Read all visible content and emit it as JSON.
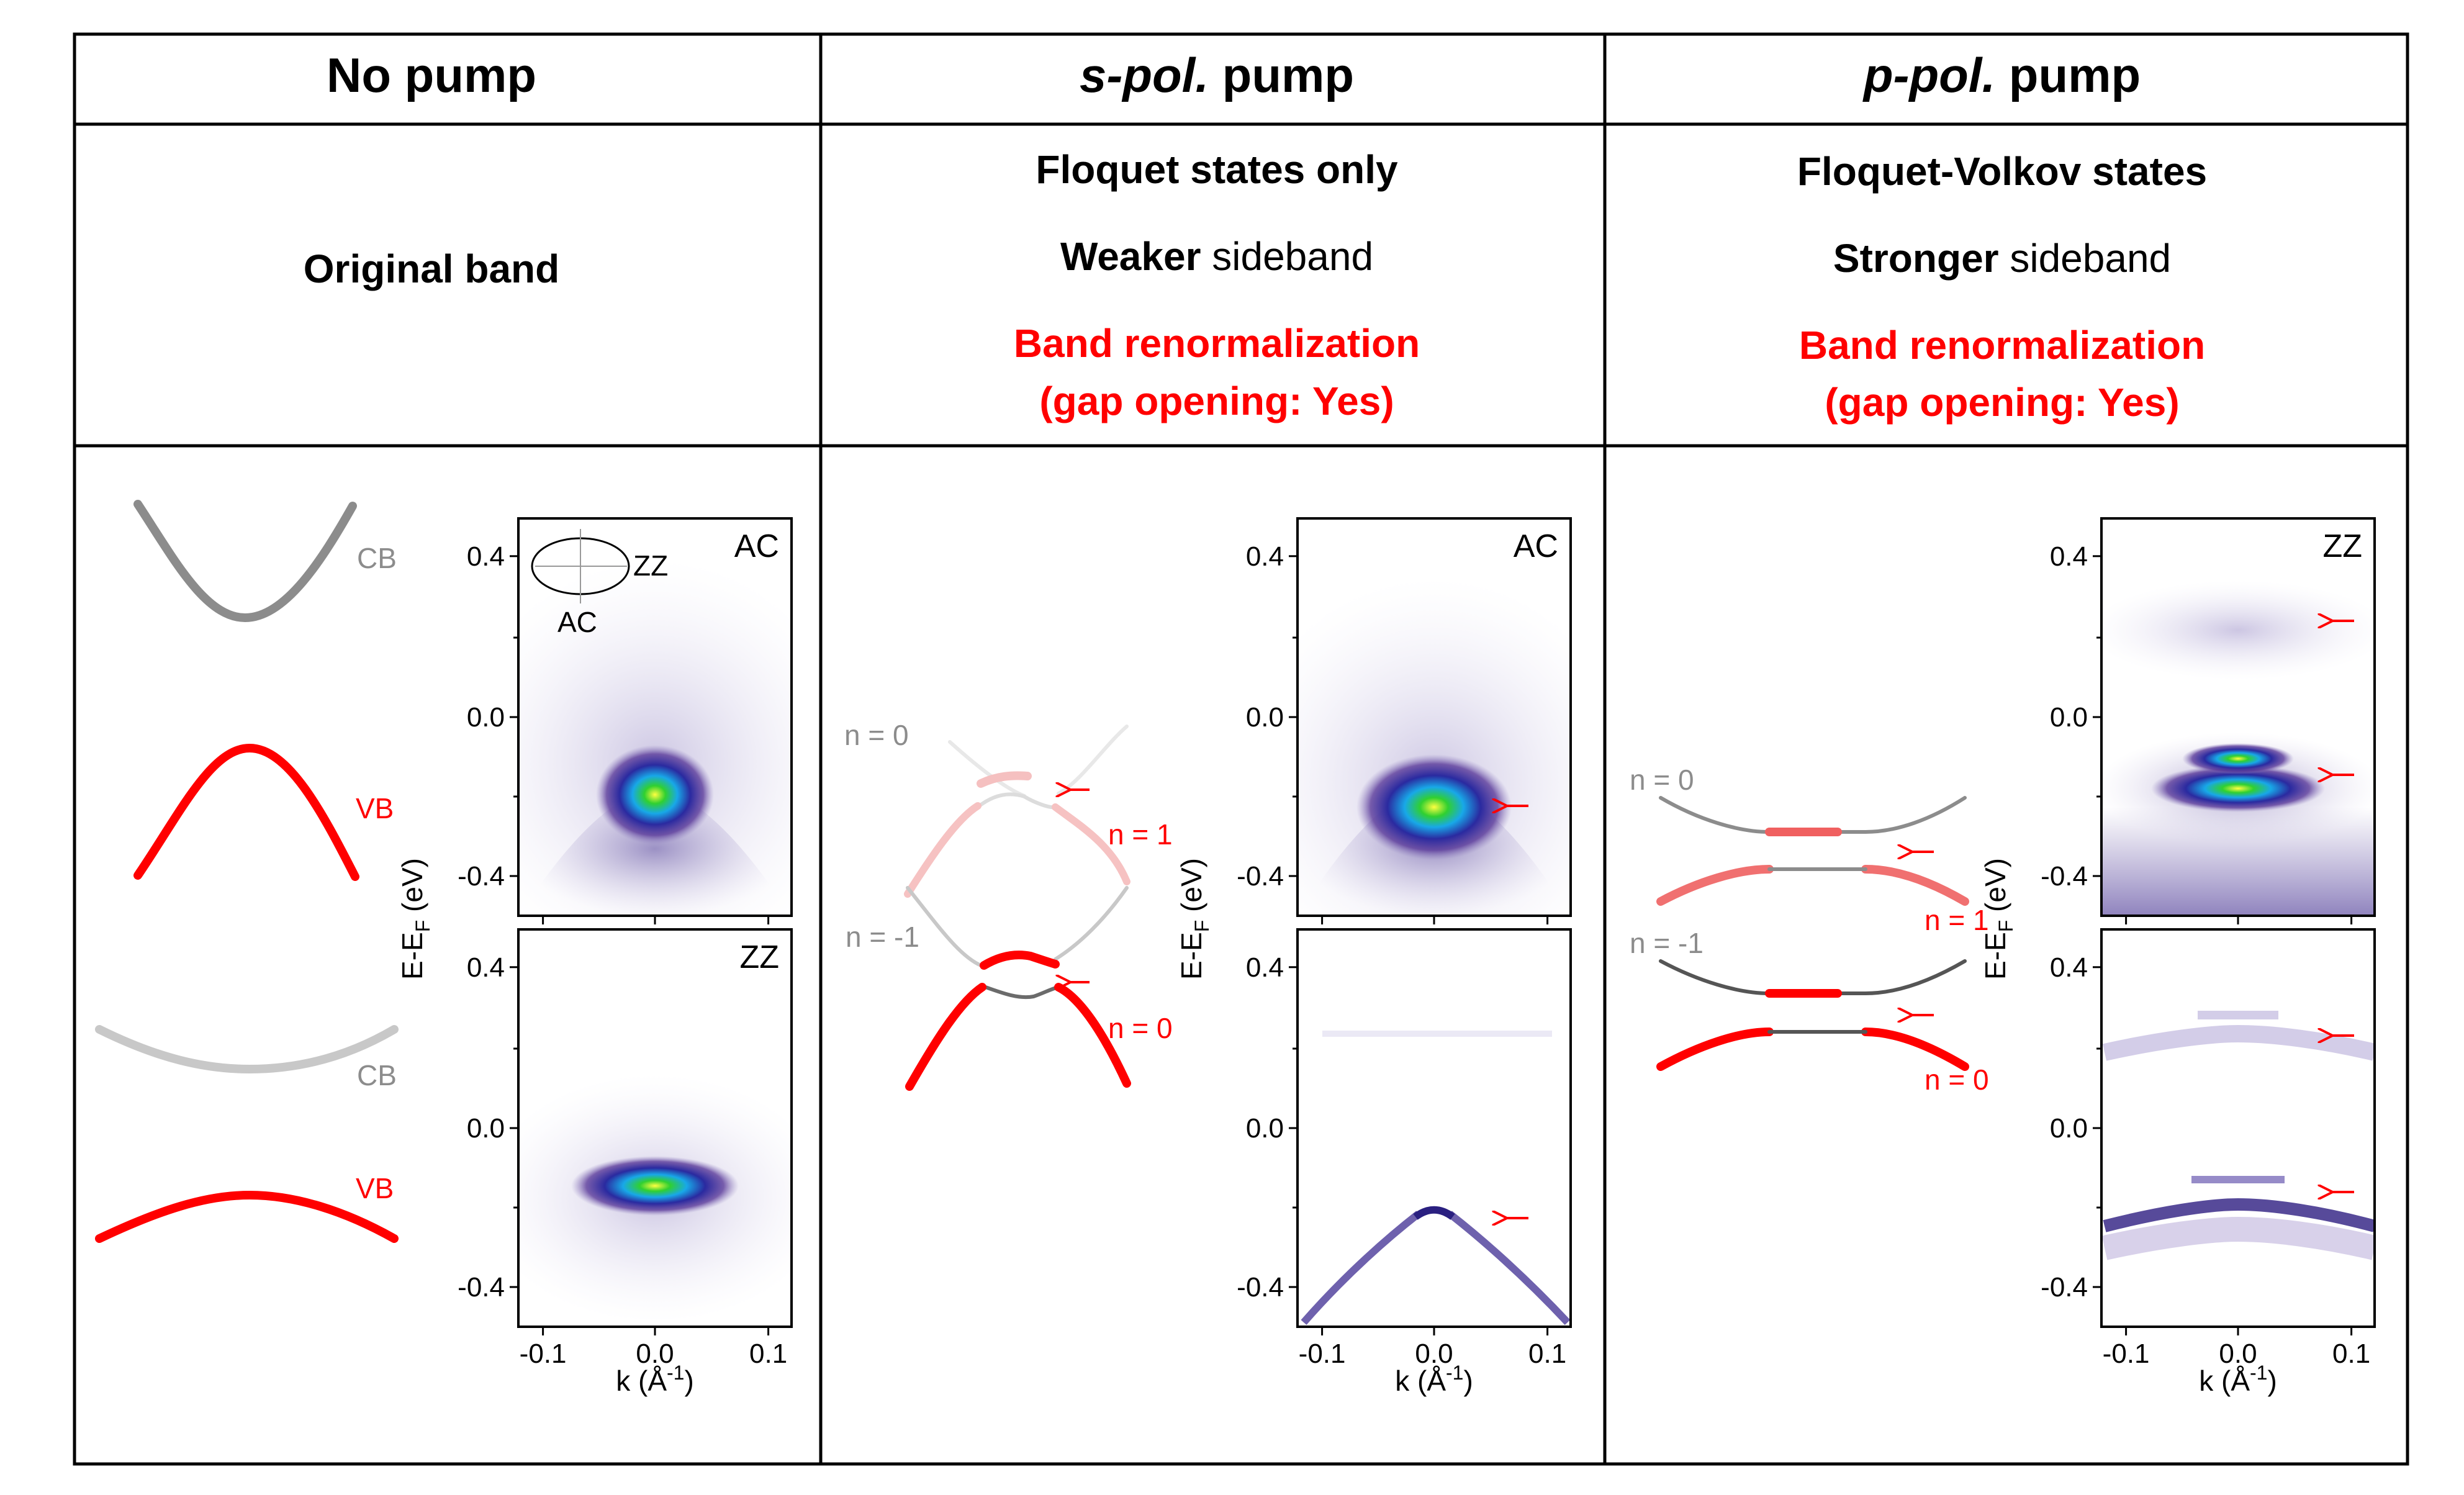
{
  "colors": {
    "red": "#ff0000",
    "gray": "#8c8c8c",
    "lightgray": "#c8c8c8",
    "pink": "#f09090",
    "dark": "#333333"
  },
  "columns": [
    {
      "title_pre": "",
      "title_italic": "",
      "title_post": "No pump",
      "lines": [
        {
          "parts": [
            {
              "text": "Original band",
              "style": "bold"
            }
          ]
        }
      ]
    },
    {
      "title_pre": "",
      "title_italic": "s-pol.",
      "title_post": " pump",
      "lines": [
        {
          "parts": [
            {
              "text": "Floquet states only",
              "style": "bold"
            }
          ]
        },
        {
          "parts": [
            {
              "text": "Weaker",
              "style": "bold"
            },
            {
              "text": " sideband",
              "style": "normal"
            }
          ]
        },
        {
          "parts": [
            {
              "text": "Band renormalization",
              "style": "red"
            }
          ]
        },
        {
          "parts": [
            {
              "text": "(gap opening: Yes)",
              "style": "red"
            }
          ]
        }
      ]
    },
    {
      "title_pre": "",
      "title_italic": "p-pol.",
      "title_post": " pump",
      "lines": [
        {
          "parts": [
            {
              "text": "Floquet-Volkov states",
              "style": "bold"
            }
          ]
        },
        {
          "parts": [
            {
              "text": "Stronger",
              "style": "bold"
            },
            {
              "text": " sideband",
              "style": "normal"
            }
          ]
        },
        {
          "parts": [
            {
              "text": "Band renormalization",
              "style": "red"
            }
          ]
        },
        {
          "parts": [
            {
              "text": "(gap opening: Yes)",
              "style": "red"
            }
          ]
        }
      ]
    }
  ],
  "schematic_labels": {
    "col1": [
      "CB",
      "VB",
      "CB",
      "VB"
    ],
    "col2": [
      "n = 0",
      "n = 1",
      "n = -1",
      "n = 0"
    ],
    "col3": [
      "n = 0",
      "n = 1",
      "n = -1",
      "n = 0"
    ]
  },
  "plots": {
    "y_ticks": [
      "0.4",
      "0.0",
      "-0.4"
    ],
    "x_ticks": [
      "-0.1",
      "0.0",
      "0.1"
    ],
    "ylabel_main": "E-E",
    "ylabel_sub": "F",
    "ylabel_unit": " (eV)",
    "xlabel_main": "k (Å",
    "xlabel_sup": "-1",
    "xlabel_end": ")",
    "panel_labels": [
      "AC",
      "ZZ",
      "AC",
      "",
      "ZZ",
      ""
    ],
    "inset_labels": [
      "ZZ",
      "AC"
    ]
  }
}
